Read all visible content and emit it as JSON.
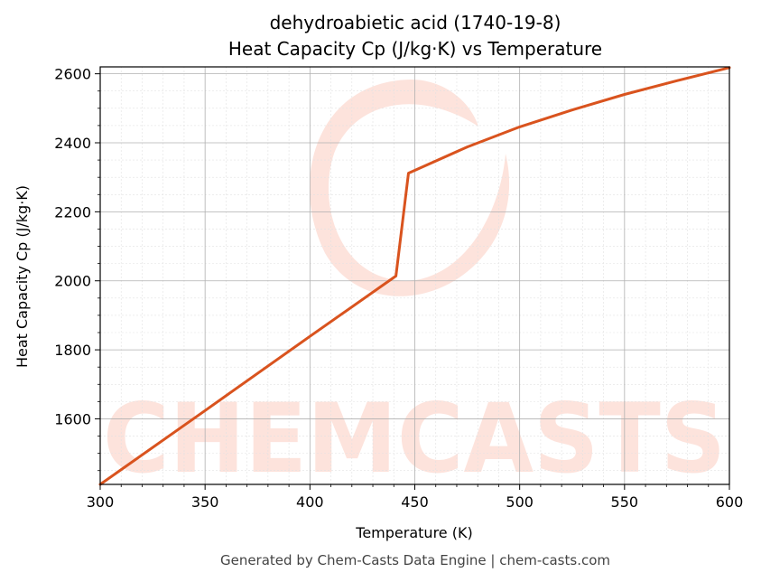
{
  "chart_data": {
    "type": "line",
    "title": "dehydroabietic acid (1740-19-8)",
    "subtitle": "Heat Capacity Cp (J/kg·K) vs Temperature",
    "xlabel": "Temperature (K)",
    "ylabel": "Heat Capacity Cp (J/kg·K)",
    "xlim": [
      300,
      600
    ],
    "ylim": [
      1410,
      2620
    ],
    "xticks": [
      300,
      350,
      400,
      450,
      500,
      550,
      600
    ],
    "xtick_labels": [
      "300",
      "350",
      "400",
      "450",
      "500",
      "550",
      "600"
    ],
    "yticks": [
      1600,
      1800,
      2000,
      2200,
      2400,
      2600
    ],
    "ytick_labels": [
      "1600",
      "1800",
      "2000",
      "2200",
      "2400",
      "2600"
    ],
    "grid": true,
    "legend": false,
    "series": [
      {
        "color": "#d9531e",
        "x": [
          300,
          350,
          400,
          441,
          447,
          475,
          500,
          525,
          550,
          575,
          600
        ],
        "y": [
          1410,
          1624,
          1839,
          2014,
          2312,
          2388,
          2446,
          2495,
          2540,
          2580,
          2618
        ]
      }
    ]
  },
  "watermark": {
    "text": "CHEMCASTS",
    "color": "#fde3dc",
    "icon": "chemcasts-logo-c-icon"
  },
  "footer": "Generated by Chem-Casts Data Engine | chem-casts.com"
}
